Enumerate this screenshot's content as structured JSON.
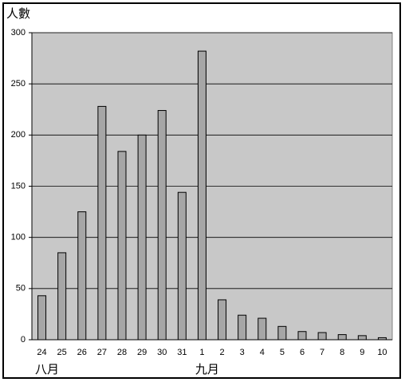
{
  "chart_data": {
    "type": "bar",
    "y_axis_label": "人數",
    "categories": [
      "24",
      "25",
      "26",
      "27",
      "28",
      "29",
      "30",
      "31",
      "1",
      "2",
      "3",
      "4",
      "5",
      "6",
      "7",
      "8",
      "9",
      "10"
    ],
    "values": [
      43,
      85,
      125,
      228,
      184,
      200,
      224,
      144,
      282,
      39,
      24,
      21,
      13,
      8,
      7,
      5,
      4,
      2
    ],
    "x_groups": [
      {
        "label": "八月",
        "start": 0
      },
      {
        "label": "九月",
        "start": 8
      }
    ],
    "color": "#a6a6a6",
    "plot_background": "#c8c8c8",
    "ylim": [
      0,
      300
    ],
    "yticks": [
      0,
      50,
      100,
      150,
      200,
      250,
      300
    ],
    "grid": true
  }
}
